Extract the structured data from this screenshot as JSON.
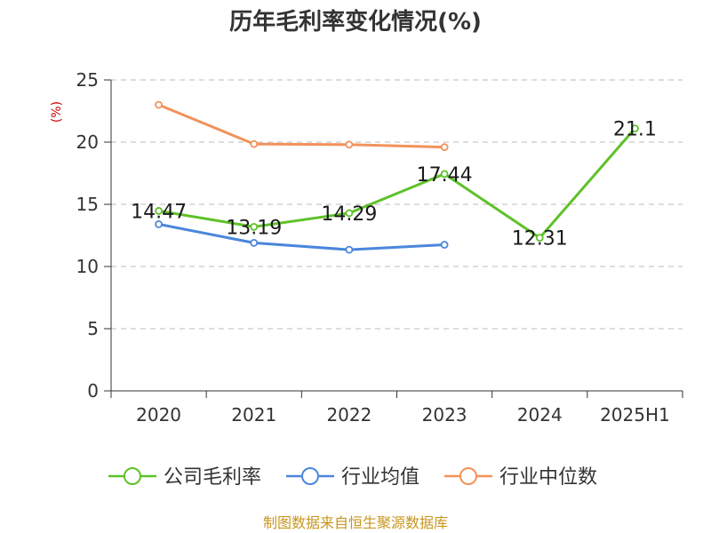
{
  "chart_data": {
    "type": "line",
    "title": "历年毛利率变化情况(%)",
    "unit_label": "(%)",
    "categories": [
      "2020",
      "2021",
      "2022",
      "2023",
      "2024",
      "2025H1"
    ],
    "ylim": [
      0,
      25
    ],
    "yticks": [
      "0",
      "5",
      "10",
      "15",
      "20",
      "25"
    ],
    "grid": true,
    "legend_position": "bottom",
    "series": [
      {
        "name": "公司毛利率",
        "color": "#5fc128",
        "values": [
          14.47,
          13.19,
          14.29,
          17.44,
          12.31,
          21.1
        ],
        "labels": [
          "14.47",
          "13.19",
          "14.29",
          "17.44",
          "12.31",
          "21.1"
        ]
      },
      {
        "name": "行业均值",
        "color": "#4a86dc",
        "values": [
          13.4,
          11.9,
          11.35,
          11.75,
          null,
          null
        ]
      },
      {
        "name": "行业中位数",
        "color": "#f2925b",
        "values": [
          23.0,
          19.85,
          19.8,
          19.6,
          null,
          null
        ]
      }
    ]
  },
  "source": "制图数据来自恒生聚源数据库"
}
